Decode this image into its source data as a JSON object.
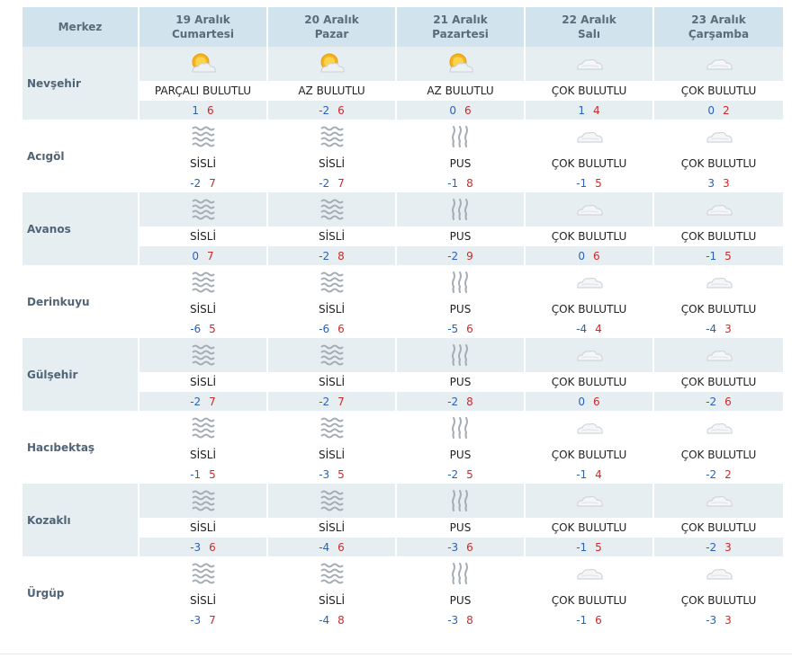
{
  "header": {
    "label": "Merkez",
    "days": [
      {
        "date": "19 Aralık",
        "weekday": "Cumartesi"
      },
      {
        "date": "20 Aralık",
        "weekday": "Pazar"
      },
      {
        "date": "21 Aralık",
        "weekday": "Pazartesi"
      },
      {
        "date": "22 Aralık",
        "weekday": "Salı"
      },
      {
        "date": "23 Aralık",
        "weekday": "Çarşamba"
      }
    ]
  },
  "rows": [
    {
      "name": "Nevşehir",
      "days": [
        {
          "icon": "sun-cloud-icon",
          "cond": "PARÇALI BULUTLU",
          "min": "1",
          "max": "6"
        },
        {
          "icon": "sun-cloud-icon",
          "cond": "AZ BULUTLU",
          "min": "-2",
          "max": "6"
        },
        {
          "icon": "sun-cloud-icon",
          "cond": "AZ BULUTLU",
          "min": "0",
          "max": "6"
        },
        {
          "icon": "cloud-icon",
          "cond": "ÇOK BULUTLU",
          "min": "1",
          "max": "4"
        },
        {
          "icon": "cloud-icon",
          "cond": "ÇOK BULUTLU",
          "min": "0",
          "max": "2"
        }
      ]
    },
    {
      "name": "Acıgöl",
      "days": [
        {
          "icon": "fog-icon",
          "cond": "SİSLİ",
          "min": "-2",
          "max": "7"
        },
        {
          "icon": "fog-icon",
          "cond": "SİSLİ",
          "min": "-2",
          "max": "7"
        },
        {
          "icon": "haze-icon",
          "cond": "PUS",
          "min": "-1",
          "max": "8"
        },
        {
          "icon": "cloud-icon",
          "cond": "ÇOK BULUTLU",
          "min": "-1",
          "max": "5"
        },
        {
          "icon": "cloud-icon",
          "cond": "ÇOK BULUTLU",
          "min": "3",
          "max": "3"
        }
      ]
    },
    {
      "name": "Avanos",
      "days": [
        {
          "icon": "fog-icon",
          "cond": "SİSLİ",
          "min": "0",
          "max": "7"
        },
        {
          "icon": "fog-icon",
          "cond": "SİSLİ",
          "min": "-2",
          "max": "8"
        },
        {
          "icon": "haze-icon",
          "cond": "PUS",
          "min": "-2",
          "max": "9"
        },
        {
          "icon": "cloud-icon",
          "cond": "ÇOK BULUTLU",
          "min": "0",
          "max": "6"
        },
        {
          "icon": "cloud-icon",
          "cond": "ÇOK BULUTLU",
          "min": "-1",
          "max": "5"
        }
      ]
    },
    {
      "name": "Derinkuyu",
      "days": [
        {
          "icon": "fog-icon",
          "cond": "SİSLİ",
          "min": "-6",
          "max": "5"
        },
        {
          "icon": "fog-icon",
          "cond": "SİSLİ",
          "min": "-6",
          "max": "6"
        },
        {
          "icon": "haze-icon",
          "cond": "PUS",
          "min": "-5",
          "max": "6"
        },
        {
          "icon": "cloud-icon",
          "cond": "ÇOK BULUTLU",
          "min": "-4",
          "max": "4"
        },
        {
          "icon": "cloud-icon",
          "cond": "ÇOK BULUTLU",
          "min": "-4",
          "max": "3"
        }
      ]
    },
    {
      "name": "Gülşehir",
      "days": [
        {
          "icon": "fog-icon",
          "cond": "SİSLİ",
          "min": "-2",
          "max": "7"
        },
        {
          "icon": "fog-icon",
          "cond": "SİSLİ",
          "min": "-2",
          "max": "7"
        },
        {
          "icon": "haze-icon",
          "cond": "PUS",
          "min": "-2",
          "max": "8"
        },
        {
          "icon": "cloud-icon",
          "cond": "ÇOK BULUTLU",
          "min": "0",
          "max": "6"
        },
        {
          "icon": "cloud-icon",
          "cond": "ÇOK BULUTLU",
          "min": "-2",
          "max": "6"
        }
      ]
    },
    {
      "name": "Hacıbektaş",
      "days": [
        {
          "icon": "fog-icon",
          "cond": "SİSLİ",
          "min": "-1",
          "max": "5"
        },
        {
          "icon": "fog-icon",
          "cond": "SİSLİ",
          "min": "-3",
          "max": "5"
        },
        {
          "icon": "haze-icon",
          "cond": "PUS",
          "min": "-2",
          "max": "5"
        },
        {
          "icon": "cloud-icon",
          "cond": "ÇOK BULUTLU",
          "min": "-1",
          "max": "4"
        },
        {
          "icon": "cloud-icon",
          "cond": "ÇOK BULUTLU",
          "min": "-2",
          "max": "2"
        }
      ]
    },
    {
      "name": "Kozaklı",
      "days": [
        {
          "icon": "fog-icon",
          "cond": "SİSLİ",
          "min": "-3",
          "max": "6"
        },
        {
          "icon": "fog-icon",
          "cond": "SİSLİ",
          "min": "-4",
          "max": "6"
        },
        {
          "icon": "haze-icon",
          "cond": "PUS",
          "min": "-3",
          "max": "6"
        },
        {
          "icon": "cloud-icon",
          "cond": "ÇOK BULUTLU",
          "min": "-1",
          "max": "5"
        },
        {
          "icon": "cloud-icon",
          "cond": "ÇOK BULUTLU",
          "min": "-2",
          "max": "3"
        }
      ]
    },
    {
      "name": "Ürgüp",
      "days": [
        {
          "icon": "fog-icon",
          "cond": "SİSLİ",
          "min": "-3",
          "max": "7"
        },
        {
          "icon": "fog-icon",
          "cond": "SİSLİ",
          "min": "-4",
          "max": "8"
        },
        {
          "icon": "haze-icon",
          "cond": "PUS",
          "min": "-3",
          "max": "8"
        },
        {
          "icon": "cloud-icon",
          "cond": "ÇOK BULUTLU",
          "min": "-1",
          "max": "6"
        },
        {
          "icon": "cloud-icon",
          "cond": "ÇOK BULUTLU",
          "min": "-3",
          "max": "3"
        }
      ]
    }
  ],
  "colors": {
    "header_bg": "#d1e3ec",
    "shade_bg": "#e7eef2",
    "min_temp": "#2a62b6",
    "max_temp": "#cc2a2a"
  }
}
